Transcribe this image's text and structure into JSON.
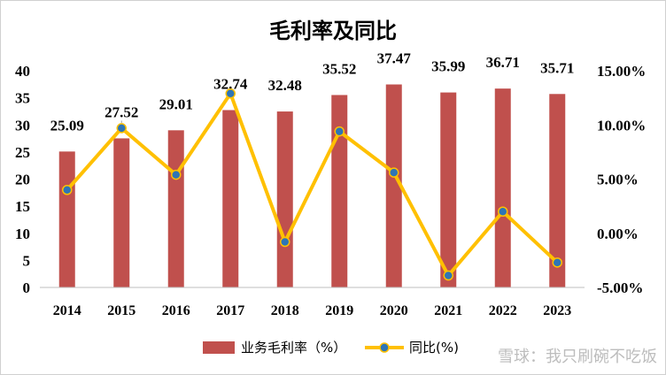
{
  "chart_data": {
    "type": "bar",
    "title": "毛利率及同比",
    "categories": [
      "2014",
      "2015",
      "2016",
      "2017",
      "2018",
      "2019",
      "2020",
      "2021",
      "2022",
      "2023"
    ],
    "series": [
      {
        "name": "业务毛利率（%）",
        "type": "bar",
        "axis": "left",
        "color": "#c0504d",
        "values": [
          25.09,
          27.52,
          29.01,
          32.74,
          32.48,
          35.52,
          37.47,
          35.99,
          36.71,
          35.71
        ],
        "labels": [
          "25.09",
          "27.52",
          "29.01",
          "32.74",
          "32.48",
          "35.52",
          "37.47",
          "35.99",
          "36.71",
          "35.71"
        ]
      },
      {
        "name": "同比(%)",
        "type": "line",
        "axis": "right",
        "color": "#ffc000",
        "marker_color": "#2e75b6",
        "values": [
          4.0,
          9.7,
          5.4,
          12.9,
          -0.8,
          9.4,
          5.6,
          -3.9,
          2.0,
          -2.7
        ]
      }
    ],
    "ylim_left": [
      0,
      40
    ],
    "yticks_left": [
      "0",
      "5",
      "10",
      "15",
      "20",
      "25",
      "30",
      "35",
      "40"
    ],
    "ylim_right": [
      -5,
      15
    ],
    "yticks_right": [
      "-5.00%",
      "0.00%",
      "5.00%",
      "10.00%",
      "15.00%"
    ],
    "legend": "bottom",
    "grid": false
  },
  "watermark": "雪球：我只刷碗不吃饭"
}
